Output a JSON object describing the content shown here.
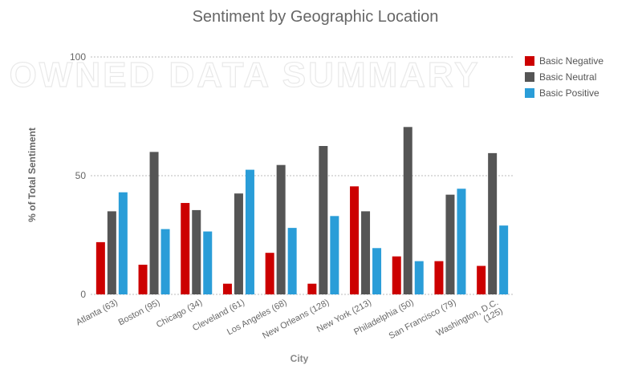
{
  "watermark": "OWNED DATA SUMMARY",
  "chart_data": {
    "type": "bar",
    "title": "Sentiment by Geographic Location",
    "xlabel": "City",
    "ylabel": "% of Total Sentiment",
    "ylim": [
      0,
      100
    ],
    "yticks": [
      0,
      50,
      100
    ],
    "grid": true,
    "legend_position": "top-right",
    "categories": [
      "Atlanta (63)",
      "Boston (95)",
      "Chicago (34)",
      "Cleveland (61)",
      "Los Angeles (68)",
      "New Orleans (128)",
      "New York (213)",
      "Philadelphia (50)",
      "San Francisco (79)",
      "Washington, D.C. (125)"
    ],
    "series": [
      {
        "name": "Basic Negative",
        "color": "#cc0000",
        "values": [
          22,
          12.5,
          38.5,
          4.5,
          17.5,
          4.5,
          45.5,
          16,
          14,
          12
        ]
      },
      {
        "name": "Basic Neutral",
        "color": "#555555",
        "values": [
          35,
          60,
          35.5,
          42.5,
          54.5,
          62.5,
          35,
          70.5,
          42,
          59.5
        ]
      },
      {
        "name": "Basic Positive",
        "color": "#2a9dd8",
        "values": [
          43,
          27.5,
          26.5,
          52.5,
          28,
          33,
          19.5,
          14,
          44.5,
          29
        ]
      }
    ]
  }
}
